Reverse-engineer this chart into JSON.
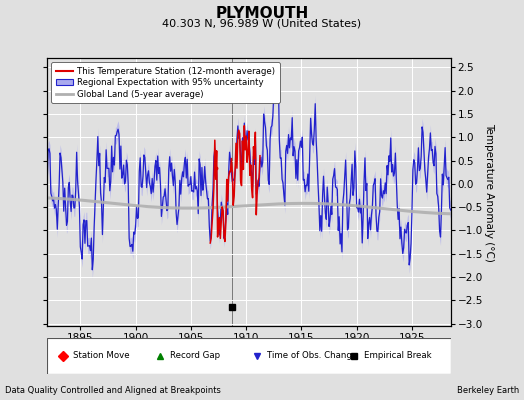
{
  "title": "PLYMOUTH",
  "subtitle": "40.303 N, 96.989 W (United States)",
  "xlabel_note": "Data Quality Controlled and Aligned at Breakpoints",
  "xlabel_credit": "Berkeley Earth",
  "ylabel": "Temperature Anomaly (°C)",
  "xlim": [
    1892.0,
    1928.5
  ],
  "ylim": [
    -3.05,
    2.7
  ],
  "yticks": [
    -3,
    -2.5,
    -2,
    -1.5,
    -1,
    -0.5,
    0,
    0.5,
    1,
    1.5,
    2,
    2.5
  ],
  "xticks": [
    1895,
    1900,
    1905,
    1910,
    1915,
    1920,
    1925
  ],
  "bg_color": "#e0e0e0",
  "grid_color": "#ffffff",
  "regional_color": "#2222cc",
  "regional_shade_color": "#aaaaee",
  "station_color": "#dd0000",
  "global_color": "#b0b0b0",
  "empirical_break_x": 1908.7,
  "station_start": 1906.7,
  "station_end": 1911.3,
  "small_dot_x": 1907.3,
  "small_dot_y": 0.35
}
